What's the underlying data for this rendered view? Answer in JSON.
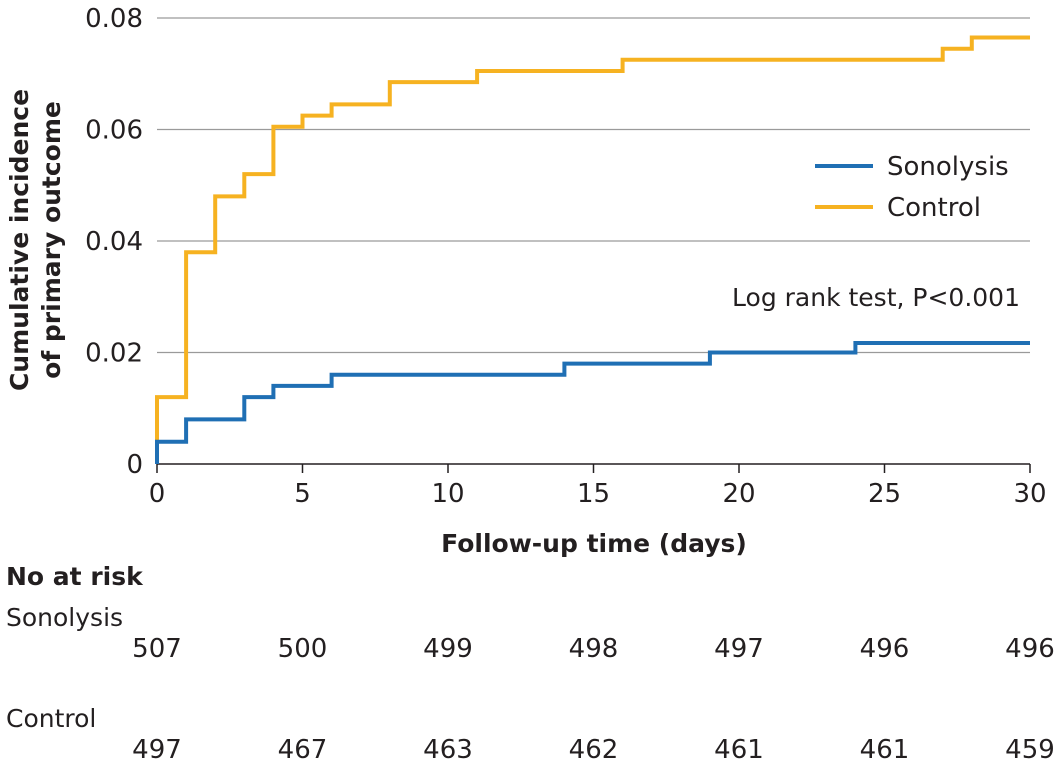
{
  "chart_data": {
    "type": "line",
    "step": true,
    "xlabel": "Follow-up time (days)",
    "ylabel_lines": [
      "Cumulative incidence",
      "of primary outcome"
    ],
    "xlim": [
      0,
      30
    ],
    "ylim": [
      0,
      0.08
    ],
    "xticks": [
      0,
      5,
      10,
      15,
      20,
      25,
      30
    ],
    "xtick_labels": [
      "0",
      "5",
      "10",
      "15",
      "20",
      "25",
      "30"
    ],
    "yticks": [
      0,
      0.02,
      0.04,
      0.06,
      0.08
    ],
    "ytick_labels": [
      "0",
      "0.02",
      "0.04",
      "0.06",
      "0.08"
    ],
    "grid": "horizontal",
    "legend_position": "right",
    "annotation": "Log rank test, P<0.001",
    "series": [
      {
        "name": "Sonolysis",
        "color": "#1f6fb4",
        "points": [
          [
            0,
            0
          ],
          [
            0,
            0.004
          ],
          [
            1,
            0.004
          ],
          [
            1,
            0.008
          ],
          [
            3,
            0.008
          ],
          [
            3,
            0.012
          ],
          [
            4,
            0.012
          ],
          [
            4,
            0.014
          ],
          [
            6,
            0.014
          ],
          [
            6,
            0.016
          ],
          [
            14,
            0.016
          ],
          [
            14,
            0.018
          ],
          [
            19,
            0.018
          ],
          [
            19,
            0.02
          ],
          [
            24,
            0.02
          ],
          [
            24,
            0.0217
          ],
          [
            30,
            0.0217
          ]
        ]
      },
      {
        "name": "Control",
        "color": "#f6b221",
        "points": [
          [
            0,
            0.004
          ],
          [
            0,
            0.012
          ],
          [
            1,
            0.012
          ],
          [
            1,
            0.038
          ],
          [
            2,
            0.038
          ],
          [
            2,
            0.048
          ],
          [
            3,
            0.048
          ],
          [
            3,
            0.052
          ],
          [
            4,
            0.052
          ],
          [
            4,
            0.0605
          ],
          [
            5,
            0.0605
          ],
          [
            5,
            0.0625
          ],
          [
            6,
            0.0625
          ],
          [
            6,
            0.0645
          ],
          [
            8,
            0.0645
          ],
          [
            8,
            0.0685
          ],
          [
            11,
            0.0685
          ],
          [
            11,
            0.0705
          ],
          [
            16,
            0.0705
          ],
          [
            16,
            0.0725
          ],
          [
            27,
            0.0725
          ],
          [
            27,
            0.0745
          ],
          [
            28,
            0.0745
          ],
          [
            28,
            0.0765
          ],
          [
            30,
            0.0765
          ]
        ]
      }
    ],
    "risk_table": {
      "title": "No at risk",
      "times": [
        0,
        5,
        10,
        15,
        20,
        25,
        30
      ],
      "rows": [
        {
          "label": "Sonolysis",
          "values": [
            "507",
            "500",
            "499",
            "498",
            "497",
            "496",
            "496"
          ]
        },
        {
          "label": "Control",
          "values": [
            "497",
            "467",
            "463",
            "462",
            "461",
            "461",
            "459"
          ]
        }
      ]
    }
  }
}
